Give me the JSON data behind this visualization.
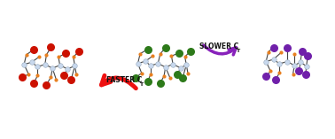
{
  "fig_width": 3.78,
  "fig_height": 1.57,
  "dpi": 100,
  "background_color": "#ffffff",
  "node_color": "#c8d8ed",
  "bond_color": "#444444",
  "accent_color": "#e88020",
  "mol1_terminal": "#cc1100",
  "mol2_terminal": "#2d7a1a",
  "mol3_terminal": "#7020aa",
  "arrow1_color": "#ee1111",
  "arrow2_color": "#8822bb",
  "faster_label": "FASTER C",
  "faster_sub": "T",
  "slower_label": "SLOWER C",
  "slower_sub": "T"
}
